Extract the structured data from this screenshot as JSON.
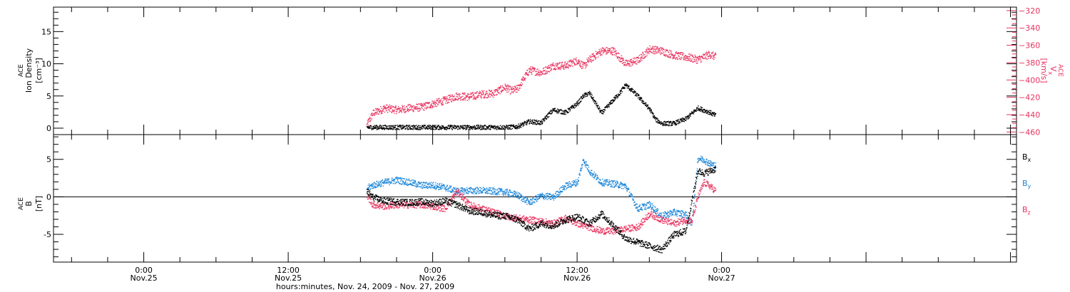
{
  "colors": {
    "black": "#000000",
    "red": "#e8335f",
    "blue": "#1b86d9"
  },
  "time_axis": {
    "title": "hours:minutes, Nov. 24, 2009 - Nov. 27, 2009",
    "range_hours": [
      -7.5,
      72.5
    ],
    "major_ticks": [
      {
        "hour": 0,
        "time": "0:00",
        "date": "Nov.25"
      },
      {
        "hour": 12,
        "time": "12:00",
        "date": "Nov.25"
      },
      {
        "hour": 24,
        "time": "0:00",
        "date": "Nov.26"
      },
      {
        "hour": 36,
        "time": "12:00",
        "date": "Nov.26"
      },
      {
        "hour": 48,
        "time": "0:00",
        "date": "Nov.27"
      }
    ]
  },
  "chart_data": [
    {
      "type": "scatter",
      "panel": "top",
      "ylabel": {
        "line1": "ACE",
        "line2": "Ion Density",
        "line3": "[cm⁻³]"
      },
      "ylabel_right": {
        "line1": "ACE",
        "line2": "V",
        "line2_sub": "x",
        "line3": "[km/s]"
      },
      "ylim": [
        -1.0,
        18.8
      ],
      "yticks": [
        0,
        5,
        10,
        15
      ],
      "y2lim": [
        -463,
        -316
      ],
      "y2ticks": [
        -320,
        -340,
        -360,
        -380,
        -400,
        -420,
        -440,
        -460
      ],
      "series": [
        {
          "color": "#000000",
          "axis": "left",
          "x": [
            18.5,
            20,
            22,
            24,
            26,
            28,
            30,
            31,
            32,
            33,
            33.5,
            34,
            35,
            36,
            36.5,
            37,
            38,
            39,
            39.5,
            40,
            41,
            42,
            42.5,
            43,
            44,
            45,
            46,
            47,
            47.5
          ],
          "values": [
            0.2,
            0.2,
            0.2,
            0.2,
            0.2,
            0.2,
            0.2,
            0.3,
            1.1,
            0.9,
            2.0,
            2.9,
            2.5,
            3.9,
            5.1,
            5.5,
            2.4,
            4.5,
            5.5,
            6.8,
            5.1,
            3.0,
            1.4,
            0.8,
            0.8,
            1.5,
            3.2,
            2.5,
            2.0
          ]
        },
        {
          "color": "#e8335f",
          "axis": "right",
          "x": [
            18.5,
            19,
            20,
            21,
            22,
            23,
            24,
            25,
            26,
            27,
            28,
            29,
            30,
            30.5,
            31,
            32,
            33,
            34,
            35,
            36,
            36.5,
            37,
            38,
            39,
            40,
            41,
            42,
            43,
            44,
            45,
            46,
            47,
            47.5
          ],
          "values": [
            -452,
            -438,
            -432,
            -434,
            -432,
            -431,
            -427,
            -423,
            -418,
            -419,
            -416,
            -415,
            -408,
            -412,
            -410,
            -388,
            -391,
            -383,
            -383,
            -377,
            -384,
            -376,
            -366,
            -366,
            -381,
            -377,
            -364,
            -366,
            -371,
            -373,
            -376,
            -370,
            -373
          ]
        }
      ]
    },
    {
      "type": "scatter",
      "panel": "bottom",
      "ylabel": {
        "line1": "ACE",
        "line2": "B",
        "line3": "[nT]"
      },
      "ylim": [
        -8.7,
        8.3
      ],
      "yticks": [
        -5,
        0,
        5
      ],
      "zero_line": true,
      "legend": [
        {
          "text": "B",
          "sub": "x",
          "color": "#000000"
        },
        {
          "text": "B",
          "sub": "y",
          "color": "#1b86d9"
        },
        {
          "text": "B",
          "sub": "z",
          "color": "#e8335f"
        }
      ],
      "series": [
        {
          "color": "#000000",
          "x": [
            18.5,
            19,
            20,
            21,
            22,
            23,
            24,
            25,
            26,
            27,
            28,
            29,
            30,
            31,
            32,
            33,
            34,
            35,
            36,
            37,
            38,
            39,
            40,
            41,
            42,
            43,
            44,
            45,
            46,
            46.5,
            47,
            47.5
          ],
          "values": [
            0.8,
            0.0,
            -0.5,
            -0.6,
            -0.7,
            -0.6,
            -0.8,
            -0.5,
            -1.0,
            -1.8,
            -2.0,
            -2.4,
            -2.5,
            -3.0,
            -4.2,
            -3.5,
            -3.8,
            -3.0,
            -2.6,
            -3.5,
            -2.2,
            -3.8,
            -5.5,
            -6.0,
            -6.5,
            -7.0,
            -5.0,
            -4.5,
            3.5,
            3.2,
            3.5,
            3.8
          ]
        },
        {
          "color": "#1b86d9",
          "x": [
            18.5,
            19,
            20,
            21,
            22,
            23,
            24,
            25,
            26,
            27,
            28,
            29,
            30,
            31,
            32,
            33,
            34,
            35,
            36,
            36.5,
            37,
            38,
            39,
            40,
            41,
            42,
            43,
            44,
            45,
            45.5,
            46,
            46.5,
            47,
            47.5
          ],
          "values": [
            1.2,
            1.6,
            2.0,
            2.3,
            2.0,
            1.6,
            1.6,
            1.3,
            0.8,
            0.9,
            0.9,
            0.8,
            0.7,
            0.3,
            -0.7,
            0.2,
            0.0,
            1.5,
            2.0,
            5.0,
            3.5,
            2.0,
            1.8,
            1.5,
            -1.5,
            -1.0,
            -2.5,
            -2.0,
            -2.3,
            -3.5,
            5.2,
            5.0,
            4.5,
            4.2
          ]
        },
        {
          "color": "#e8335f",
          "x": [
            18.5,
            19,
            20,
            21,
            22,
            23,
            24,
            25,
            26,
            27,
            28,
            29,
            30,
            31,
            32,
            33,
            34,
            35,
            36,
            37,
            38,
            39,
            40,
            41,
            42,
            43,
            44,
            45,
            45.5,
            46,
            46.5,
            47,
            47.5
          ],
          "values": [
            0.2,
            -1.0,
            -1.2,
            -1.0,
            -1.0,
            -1.0,
            -1.2,
            -1.5,
            0.8,
            -1.0,
            -1.5,
            -2.0,
            -2.5,
            -2.8,
            -3.0,
            -3.2,
            -3.5,
            -2.8,
            -3.5,
            -4.0,
            -4.5,
            -4.5,
            -4.2,
            -4.0,
            -2.2,
            -3.0,
            -3.5,
            -3.0,
            -3.2,
            0.0,
            2.0,
            1.5,
            0.8
          ]
        }
      ]
    }
  ]
}
